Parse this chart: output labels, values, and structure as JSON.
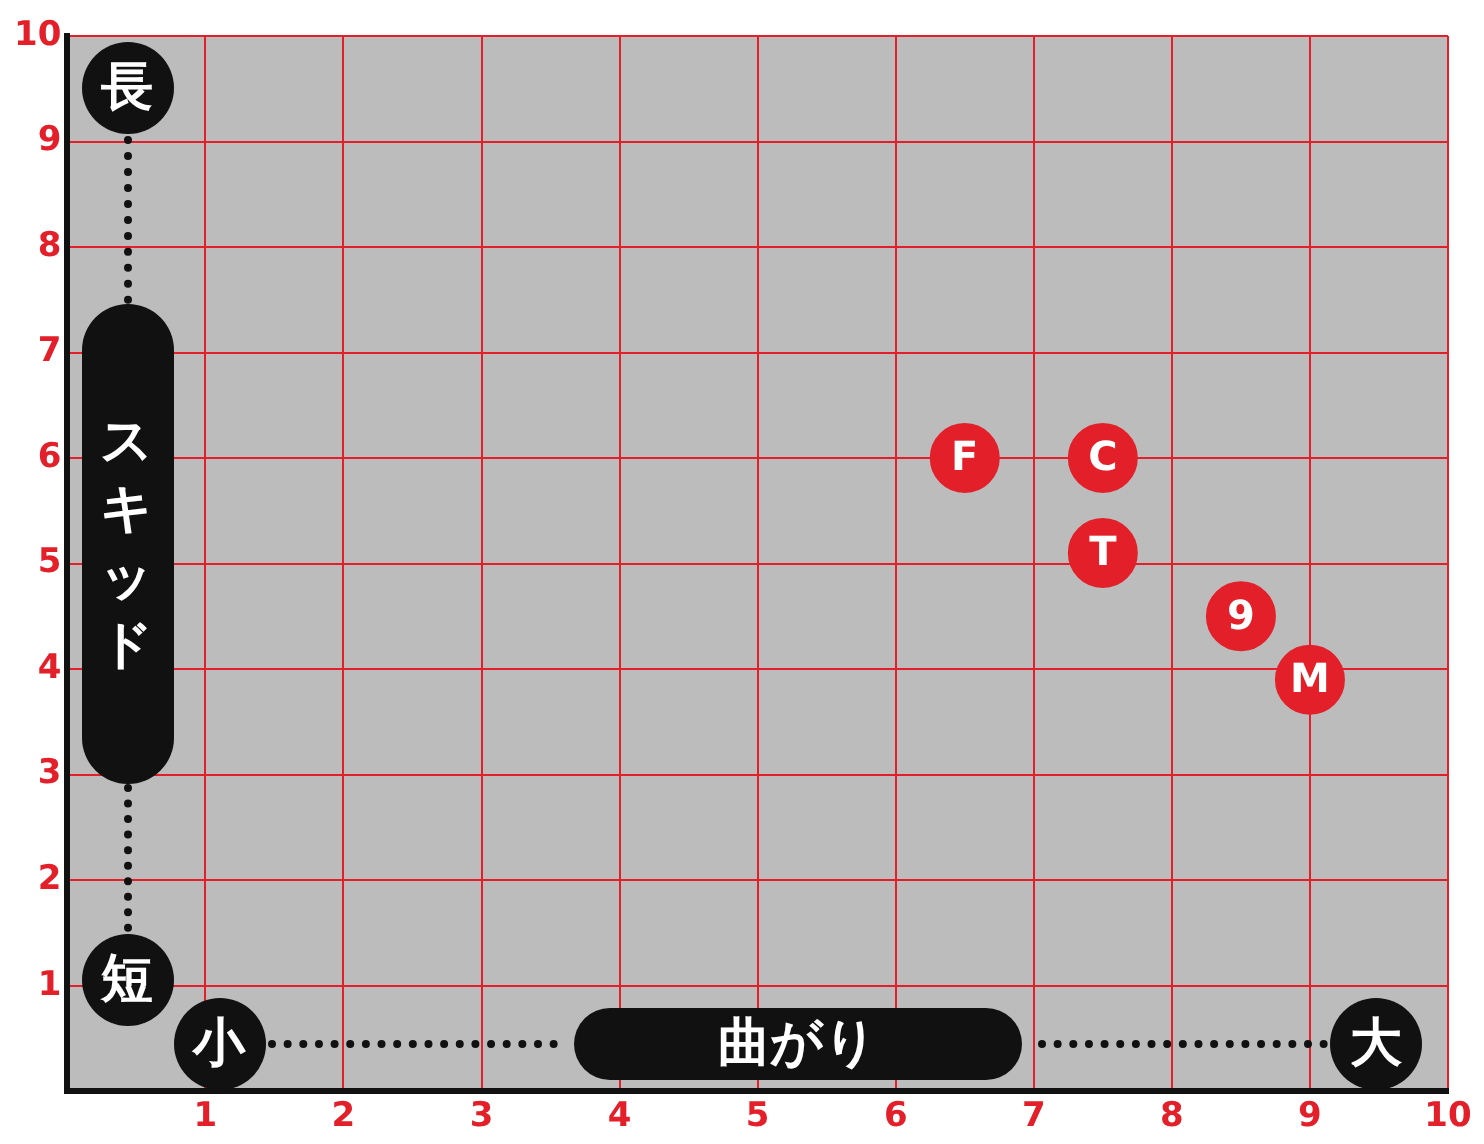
{
  "chart_data": {
    "type": "scatter",
    "xlabel": "曲がり",
    "ylabel": "スキッド",
    "x": [
      6.5,
      7.5,
      7.5,
      8.5,
      9
    ],
    "series": [
      {
        "color": "#e3202a",
        "values": [
          6,
          6,
          5.1,
          4.5,
          3.9
        ]
      }
    ],
    "annotations": [
      {
        "text": "F",
        "x": 6.5,
        "y": 6
      },
      {
        "text": "C",
        "x": 7.5,
        "y": 6
      },
      {
        "text": "T",
        "x": 7.5,
        "y": 5.1
      },
      {
        "text": "9",
        "x": 8.5,
        "y": 4.5
      },
      {
        "text": "M",
        "x": 9,
        "y": 3.9
      },
      "長",
      "短",
      "小",
      "大"
    ],
    "xlim": [
      0,
      10
    ],
    "ylim": [
      0,
      10
    ],
    "xticks": [
      1,
      2,
      3,
      4,
      5,
      6,
      7,
      8,
      9,
      10
    ],
    "yticks": [
      1,
      2,
      3,
      4,
      5,
      6,
      7,
      8,
      9,
      10
    ],
    "grid": true,
    "marker": "circle",
    "legend": false
  }
}
